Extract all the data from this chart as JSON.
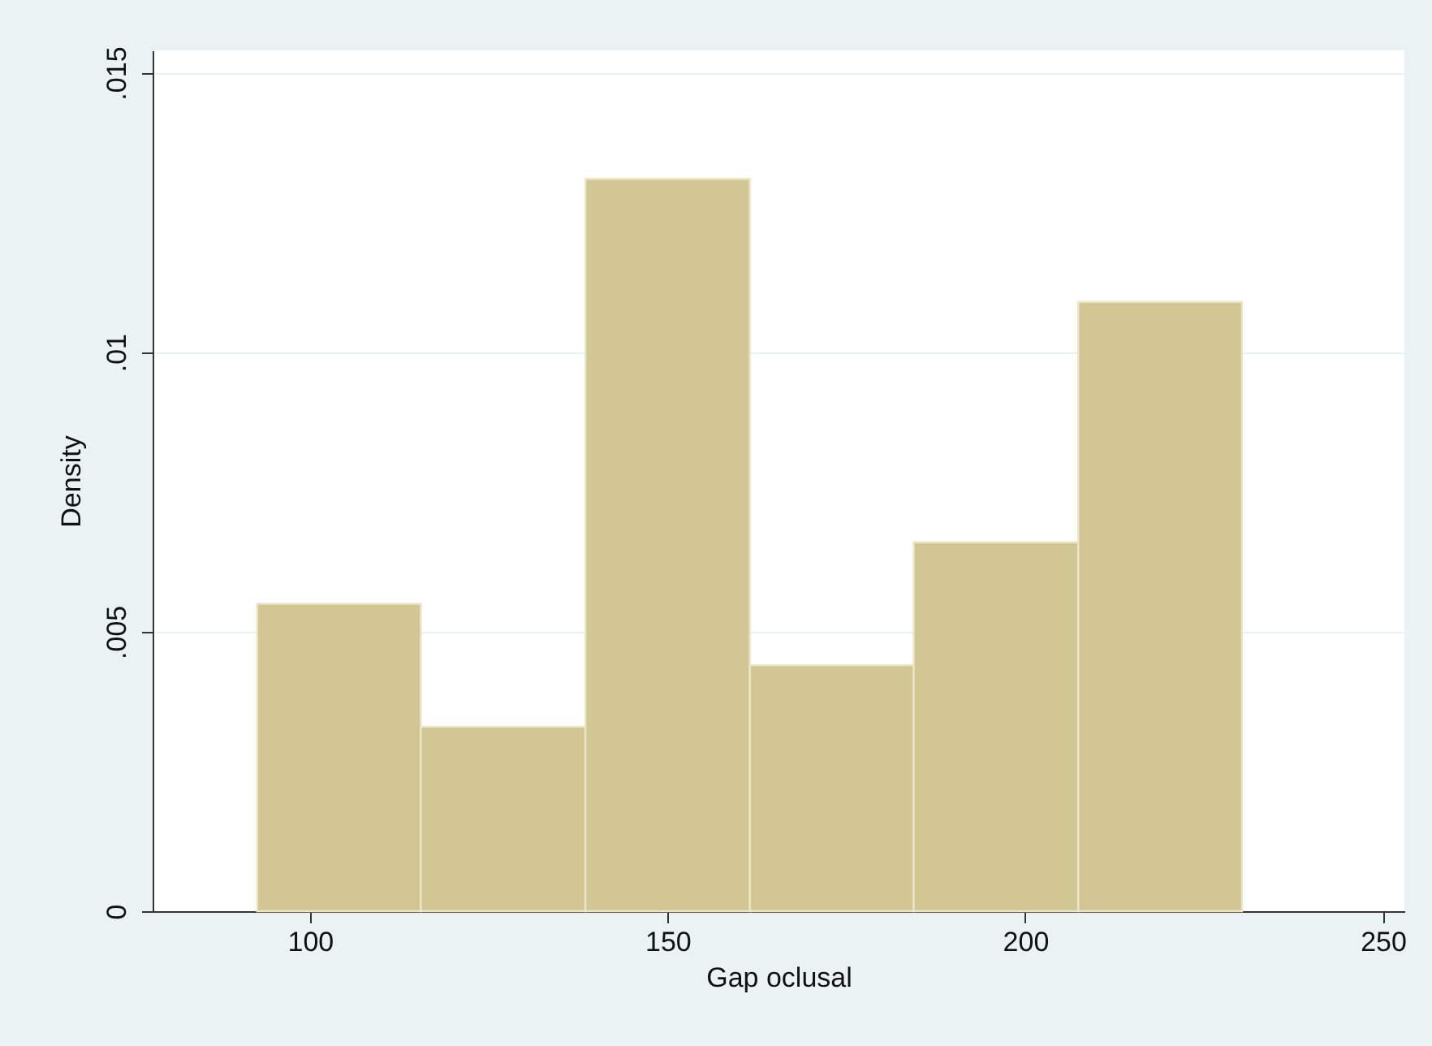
{
  "chart_data": {
    "type": "histogram",
    "xlabel": "Gap oclusal",
    "ylabel": "Density",
    "bins": [
      92.6,
      115.5,
      138.5,
      161.5,
      184.4,
      207.4,
      230.3
    ],
    "values": [
      0.0055,
      0.0033,
      0.0131,
      0.0044,
      0.0066,
      0.0109
    ],
    "color": "#d2c794",
    "xlim": [
      78,
      253
    ],
    "xticks": [
      100,
      150,
      200,
      250
    ],
    "ylim": [
      0,
      0.0154
    ],
    "yticks": [
      0,
      {
        "value": 0.005,
        "label": ".005"
      },
      {
        "value": 0.01,
        "label": ".01"
      },
      {
        "value": 0.015,
        "label": ".015"
      }
    ],
    "grid": "y"
  }
}
